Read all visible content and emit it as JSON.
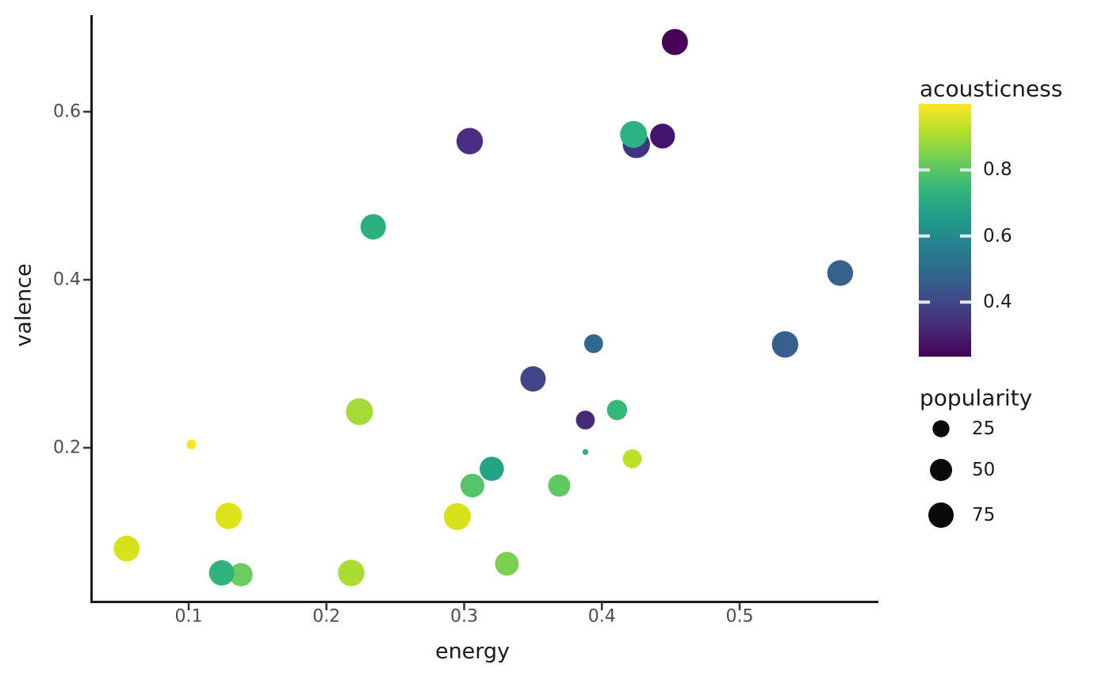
{
  "chart_data": {
    "type": "scatter",
    "xlabel": "energy",
    "ylabel": "valence",
    "x_ticks": [
      "0.1",
      "0.2",
      "0.3",
      "0.4",
      "0.5"
    ],
    "x_tick_values": [
      0.1,
      0.2,
      0.3,
      0.4,
      0.5
    ],
    "y_ticks": [
      "0.2",
      "0.4",
      "0.6"
    ],
    "y_tick_values": [
      0.2,
      0.4,
      0.6
    ],
    "xlim": [
      0.029,
      0.601
    ],
    "ylim": [
      0.017,
      0.715
    ],
    "grid": false,
    "background": "#ffffff",
    "axis_color": "#1a1a1a",
    "tick_label_color": "#4d4d4d",
    "color_legend": {
      "title": "acousticness",
      "colormap": "viridis",
      "range": [
        0.235,
        1.0
      ],
      "ticks": [
        "0.8",
        "0.6",
        "0.4"
      ],
      "tick_values": [
        0.8,
        0.6,
        0.4
      ]
    },
    "size_legend": {
      "title": "popularity",
      "entries": [
        "25",
        "50",
        "75"
      ],
      "entry_values": [
        25,
        50,
        75
      ],
      "swatch_color": "#0a0a0a"
    },
    "points": [
      {
        "energy": 0.453,
        "valence": 0.683,
        "acousticness": 0.26,
        "popularity": 81,
        "color": "#470457"
      },
      {
        "energy": 0.425,
        "valence": 0.561,
        "acousticness": 0.4,
        "popularity": 90,
        "color": "#3d3582"
      },
      {
        "energy": 0.423,
        "valence": 0.573,
        "acousticness": 0.67,
        "popularity": 87,
        "color": "#2db283"
      },
      {
        "energy": 0.444,
        "valence": 0.571,
        "acousticness": 0.3,
        "popularity": 71,
        "color": "#44156b"
      },
      {
        "energy": 0.304,
        "valence": 0.565,
        "acousticness": 0.36,
        "popularity": 84,
        "color": "#4b2e83"
      },
      {
        "energy": 0.234,
        "valence": 0.463,
        "acousticness": 0.66,
        "popularity": 75,
        "color": "#2ab07f"
      },
      {
        "energy": 0.573,
        "valence": 0.408,
        "acousticness": 0.47,
        "popularity": 79,
        "color": "#36618e"
      },
      {
        "energy": 0.533,
        "valence": 0.323,
        "acousticness": 0.47,
        "popularity": 84,
        "color": "#36618e"
      },
      {
        "energy": 0.394,
        "valence": 0.324,
        "acousticness": 0.46,
        "popularity": 34,
        "color": "#31688e"
      },
      {
        "energy": 0.35,
        "valence": 0.282,
        "acousticness": 0.44,
        "popularity": 75,
        "color": "#414487"
      },
      {
        "energy": 0.411,
        "valence": 0.245,
        "acousticness": 0.69,
        "popularity": 41,
        "color": "#35b779"
      },
      {
        "energy": 0.388,
        "valence": 0.233,
        "acousticness": 0.35,
        "popularity": 34,
        "color": "#482878"
      },
      {
        "energy": 0.388,
        "valence": 0.195,
        "acousticness": 0.67,
        "popularity": 3,
        "color": "#2db37e"
      },
      {
        "energy": 0.422,
        "valence": 0.187,
        "acousticness": 0.92,
        "popularity": 34,
        "color": "#bddf26"
      },
      {
        "energy": 0.306,
        "valence": 0.155,
        "acousticness": 0.79,
        "popularity": 63,
        "color": "#54c568"
      },
      {
        "energy": 0.32,
        "valence": 0.175,
        "acousticness": 0.61,
        "popularity": 66,
        "color": "#21a585"
      },
      {
        "energy": 0.369,
        "valence": 0.155,
        "acousticness": 0.8,
        "popularity": 50,
        "color": "#5ec962"
      },
      {
        "energy": 0.295,
        "valence": 0.118,
        "acousticness": 0.93,
        "popularity": 87,
        "color": "#d8e219"
      },
      {
        "energy": 0.129,
        "valence": 0.119,
        "acousticness": 0.94,
        "popularity": 84,
        "color": "#dde318"
      },
      {
        "energy": 0.055,
        "valence": 0.08,
        "acousticness": 0.93,
        "popularity": 79,
        "color": "#d8e219"
      },
      {
        "energy": 0.138,
        "valence": 0.049,
        "acousticness": 0.82,
        "popularity": 59,
        "color": "#6ccc5f"
      },
      {
        "energy": 0.124,
        "valence": 0.051,
        "acousticness": 0.67,
        "popularity": 75,
        "color": "#2eb37c"
      },
      {
        "energy": 0.218,
        "valence": 0.051,
        "acousticness": 0.88,
        "popularity": 84,
        "color": "#aadc32"
      },
      {
        "energy": 0.224,
        "valence": 0.243,
        "acousticness": 0.9,
        "popularity": 87,
        "color": "#a5db36"
      },
      {
        "energy": 0.102,
        "valence": 0.204,
        "acousticness": 0.97,
        "popularity": 8,
        "color": "#f8e621"
      },
      {
        "energy": 0.331,
        "valence": 0.062,
        "acousticness": 0.85,
        "popularity": 63,
        "color": "#7ad151"
      }
    ]
  }
}
